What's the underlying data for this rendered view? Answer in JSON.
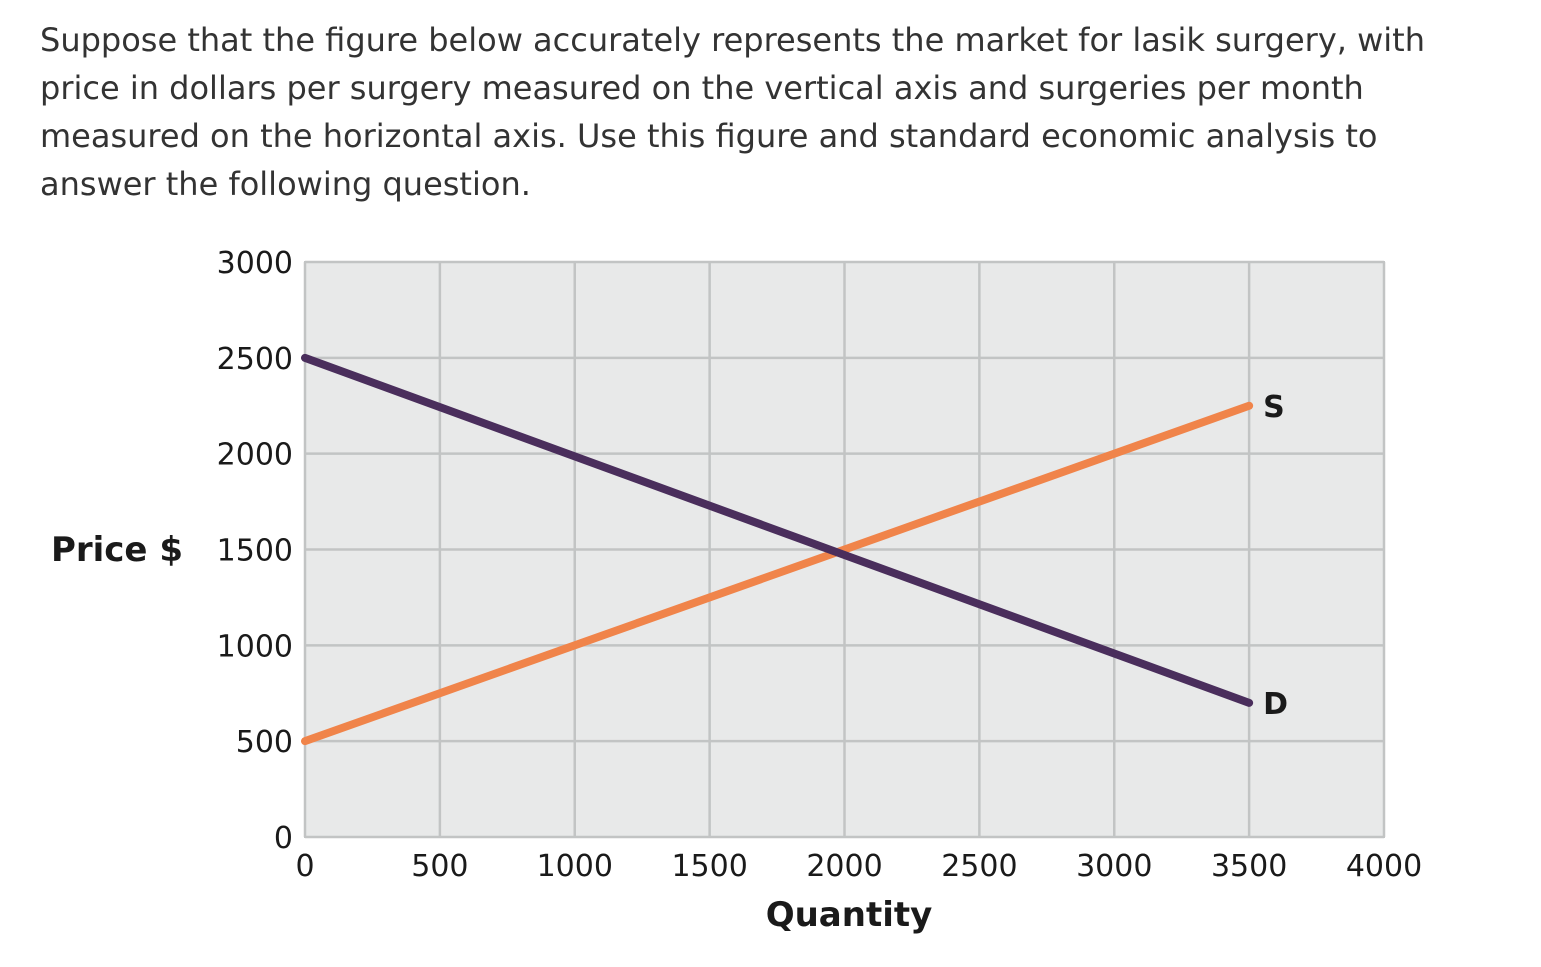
{
  "question": {
    "text": "Suppose that the figure below accurately represents the market for lasik surgery, with price in dollars per surgery measured on the vertical axis and surgeries per month measured on the horizontal axis. Use this figure and standard economic analysis to answer the following question."
  },
  "chart_data": {
    "type": "line",
    "xlabel": "Quantity",
    "ylabel": "Price $",
    "xlim": [
      0,
      4000
    ],
    "ylim": [
      0,
      3000
    ],
    "x_ticks": [
      "0",
      "500",
      "1000",
      "1500",
      "2000",
      "2500",
      "3000",
      "3500",
      "4000"
    ],
    "y_ticks": [
      "0",
      "500",
      "1000",
      "1500",
      "2000",
      "2500",
      "3000"
    ],
    "grid": true,
    "plot_background": "#e8e9e9",
    "grid_color": "#c2c4c4",
    "series": [
      {
        "name": "S",
        "color": "#f0844a",
        "points": [
          [
            0,
            500
          ],
          [
            3500,
            2250
          ]
        ]
      },
      {
        "name": "D",
        "color": "#4a2e5c",
        "points": [
          [
            0,
            2500
          ],
          [
            3500,
            700
          ]
        ]
      }
    ]
  }
}
